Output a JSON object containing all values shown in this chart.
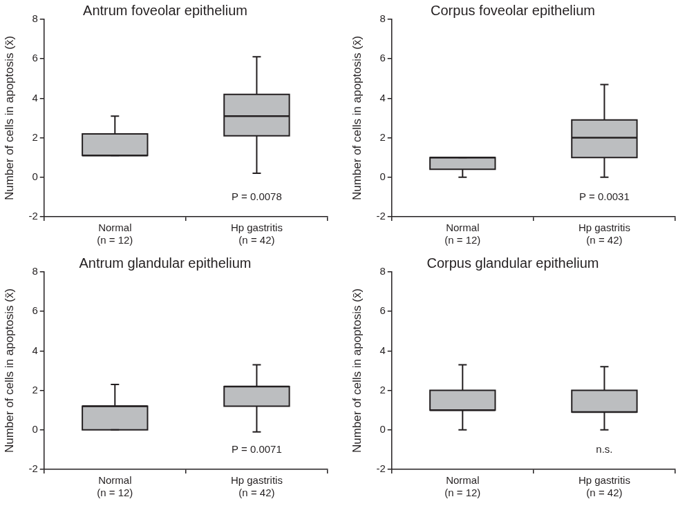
{
  "chart_data": [
    {
      "type": "box",
      "title": "Antrum foveolar epithelium",
      "ylabel": "Number of cells in apoptosis (x̄)",
      "categories": [
        "Normal\n(n = 12)",
        "Hp gastritis\n(n = 42)"
      ],
      "ylim": [
        -2,
        8
      ],
      "yticks": [
        -2,
        0,
        2,
        4,
        6,
        8
      ],
      "annotations": [
        "P = 0.0078"
      ],
      "series": [
        {
          "color": "#bcbec0",
          "boxes": [
            {
              "low": 1.1,
              "q1": 1.1,
              "median": 1.1,
              "q3": 2.2,
              "high": 3.1
            },
            {
              "low": 0.2,
              "q1": 2.1,
              "median": 3.1,
              "q3": 4.2,
              "high": 6.1
            }
          ]
        }
      ]
    },
    {
      "type": "box",
      "title": "Corpus foveolar epithelium",
      "ylabel": "Number of cells in apoptosis (x̄)",
      "categories": [
        "Normal\n(n = 12)",
        "Hp gastritis\n(n = 42)"
      ],
      "ylim": [
        -2,
        8
      ],
      "yticks": [
        -2,
        0,
        2,
        4,
        6,
        8
      ],
      "annotations": [
        "P = 0.0031"
      ],
      "series": [
        {
          "color": "#bcbec0",
          "boxes": [
            {
              "low": 0.0,
              "q1": 0.4,
              "median": 1.0,
              "q3": 1.0,
              "high": 1.0
            },
            {
              "low": 0.0,
              "q1": 1.0,
              "median": 2.0,
              "q3": 2.9,
              "high": 4.7
            }
          ]
        }
      ]
    },
    {
      "type": "box",
      "title": "Antrum glandular epithelium",
      "ylabel": "Number of cells in apoptosis (x̄)",
      "categories": [
        "Normal\n(n = 12)",
        "Hp gastritis\n(n = 42)"
      ],
      "ylim": [
        -2,
        8
      ],
      "yticks": [
        -2,
        0,
        2,
        4,
        6,
        8
      ],
      "annotations": [
        "P = 0.0071"
      ],
      "series": [
        {
          "color": "#bcbec0",
          "boxes": [
            {
              "low": 0.0,
              "q1": 0.0,
              "median": 1.2,
              "q3": 1.2,
              "high": 2.3
            },
            {
              "low": -0.1,
              "q1": 1.2,
              "median": 2.2,
              "q3": 2.2,
              "high": 3.3
            }
          ]
        }
      ]
    },
    {
      "type": "box",
      "title": "Corpus glandular epithelium",
      "ylabel": "Number of cells in apoptosis (x̄)",
      "categories": [
        "Normal\n(n = 12)",
        "Hp gastritis\n(n = 42)"
      ],
      "ylim": [
        -2,
        8
      ],
      "yticks": [
        -2,
        0,
        2,
        4,
        6,
        8
      ],
      "annotations": [
        "n.s."
      ],
      "series": [
        {
          "color": "#bcbec0",
          "boxes": [
            {
              "low": 0.0,
              "q1": 1.0,
              "median": 1.0,
              "q3": 2.0,
              "high": 3.3
            },
            {
              "low": 0.0,
              "q1": 0.9,
              "median": 0.9,
              "q3": 2.0,
              "high": 3.2
            }
          ]
        }
      ]
    }
  ]
}
